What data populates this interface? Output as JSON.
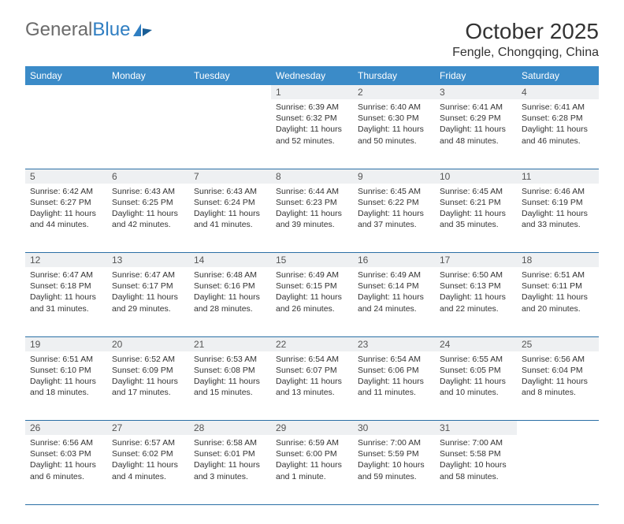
{
  "brand": {
    "name_part1": "General",
    "name_part2": "Blue"
  },
  "title": "October 2025",
  "location": "Fengle, Chongqing, China",
  "colors": {
    "header_bg": "#3b8bc8",
    "header_text": "#ffffff",
    "daynum_bg": "#eef0f2",
    "daynum_text": "#555555",
    "body_text": "#333333",
    "rule": "#2a6fa5",
    "logo_gray": "#6b6b6b",
    "logo_blue": "#2f7ec2"
  },
  "weekdays": [
    "Sunday",
    "Monday",
    "Tuesday",
    "Wednesday",
    "Thursday",
    "Friday",
    "Saturday"
  ],
  "weeks": [
    [
      null,
      null,
      null,
      {
        "d": "1",
        "sr": "6:39 AM",
        "ss": "6:32 PM",
        "dl": "11 hours and 52 minutes."
      },
      {
        "d": "2",
        "sr": "6:40 AM",
        "ss": "6:30 PM",
        "dl": "11 hours and 50 minutes."
      },
      {
        "d": "3",
        "sr": "6:41 AM",
        "ss": "6:29 PM",
        "dl": "11 hours and 48 minutes."
      },
      {
        "d": "4",
        "sr": "6:41 AM",
        "ss": "6:28 PM",
        "dl": "11 hours and 46 minutes."
      }
    ],
    [
      {
        "d": "5",
        "sr": "6:42 AM",
        "ss": "6:27 PM",
        "dl": "11 hours and 44 minutes."
      },
      {
        "d": "6",
        "sr": "6:43 AM",
        "ss": "6:25 PM",
        "dl": "11 hours and 42 minutes."
      },
      {
        "d": "7",
        "sr": "6:43 AM",
        "ss": "6:24 PM",
        "dl": "11 hours and 41 minutes."
      },
      {
        "d": "8",
        "sr": "6:44 AM",
        "ss": "6:23 PM",
        "dl": "11 hours and 39 minutes."
      },
      {
        "d": "9",
        "sr": "6:45 AM",
        "ss": "6:22 PM",
        "dl": "11 hours and 37 minutes."
      },
      {
        "d": "10",
        "sr": "6:45 AM",
        "ss": "6:21 PM",
        "dl": "11 hours and 35 minutes."
      },
      {
        "d": "11",
        "sr": "6:46 AM",
        "ss": "6:19 PM",
        "dl": "11 hours and 33 minutes."
      }
    ],
    [
      {
        "d": "12",
        "sr": "6:47 AM",
        "ss": "6:18 PM",
        "dl": "11 hours and 31 minutes."
      },
      {
        "d": "13",
        "sr": "6:47 AM",
        "ss": "6:17 PM",
        "dl": "11 hours and 29 minutes."
      },
      {
        "d": "14",
        "sr": "6:48 AM",
        "ss": "6:16 PM",
        "dl": "11 hours and 28 minutes."
      },
      {
        "d": "15",
        "sr": "6:49 AM",
        "ss": "6:15 PM",
        "dl": "11 hours and 26 minutes."
      },
      {
        "d": "16",
        "sr": "6:49 AM",
        "ss": "6:14 PM",
        "dl": "11 hours and 24 minutes."
      },
      {
        "d": "17",
        "sr": "6:50 AM",
        "ss": "6:13 PM",
        "dl": "11 hours and 22 minutes."
      },
      {
        "d": "18",
        "sr": "6:51 AM",
        "ss": "6:11 PM",
        "dl": "11 hours and 20 minutes."
      }
    ],
    [
      {
        "d": "19",
        "sr": "6:51 AM",
        "ss": "6:10 PM",
        "dl": "11 hours and 18 minutes."
      },
      {
        "d": "20",
        "sr": "6:52 AM",
        "ss": "6:09 PM",
        "dl": "11 hours and 17 minutes."
      },
      {
        "d": "21",
        "sr": "6:53 AM",
        "ss": "6:08 PM",
        "dl": "11 hours and 15 minutes."
      },
      {
        "d": "22",
        "sr": "6:54 AM",
        "ss": "6:07 PM",
        "dl": "11 hours and 13 minutes."
      },
      {
        "d": "23",
        "sr": "6:54 AM",
        "ss": "6:06 PM",
        "dl": "11 hours and 11 minutes."
      },
      {
        "d": "24",
        "sr": "6:55 AM",
        "ss": "6:05 PM",
        "dl": "11 hours and 10 minutes."
      },
      {
        "d": "25",
        "sr": "6:56 AM",
        "ss": "6:04 PM",
        "dl": "11 hours and 8 minutes."
      }
    ],
    [
      {
        "d": "26",
        "sr": "6:56 AM",
        "ss": "6:03 PM",
        "dl": "11 hours and 6 minutes."
      },
      {
        "d": "27",
        "sr": "6:57 AM",
        "ss": "6:02 PM",
        "dl": "11 hours and 4 minutes."
      },
      {
        "d": "28",
        "sr": "6:58 AM",
        "ss": "6:01 PM",
        "dl": "11 hours and 3 minutes."
      },
      {
        "d": "29",
        "sr": "6:59 AM",
        "ss": "6:00 PM",
        "dl": "11 hours and 1 minute."
      },
      {
        "d": "30",
        "sr": "7:00 AM",
        "ss": "5:59 PM",
        "dl": "10 hours and 59 minutes."
      },
      {
        "d": "31",
        "sr": "7:00 AM",
        "ss": "5:58 PM",
        "dl": "10 hours and 58 minutes."
      },
      null
    ]
  ],
  "labels": {
    "sunrise": "Sunrise:",
    "sunset": "Sunset:",
    "daylight": "Daylight:"
  },
  "typography": {
    "title_fontsize": 28,
    "location_fontsize": 16,
    "header_fontsize": 12,
    "cell_fontsize": 10.5
  }
}
